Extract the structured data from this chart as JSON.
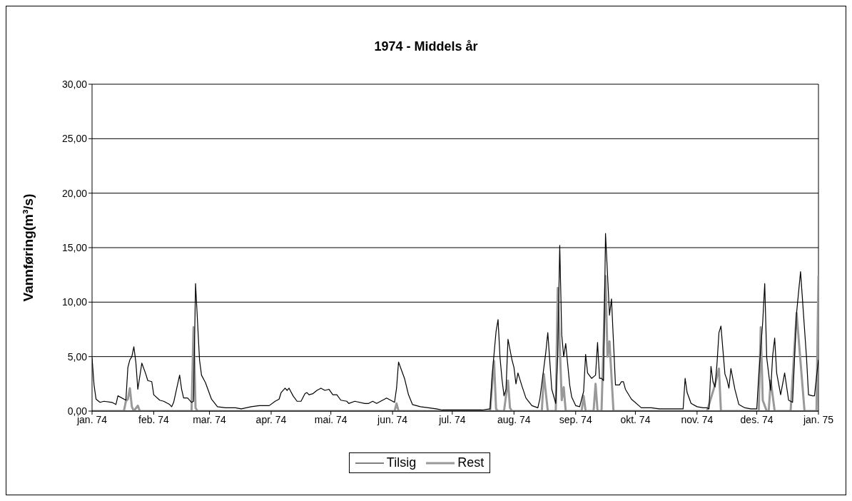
{
  "chart_data": {
    "type": "line",
    "title": "1974 - Middels år",
    "ylabel": "Vannføring(m³/s)",
    "xlim": [
      "1974-01-01",
      "1975-01-01"
    ],
    "xticks": [
      {
        "value": "1974-01-01",
        "label": "jan. 74"
      },
      {
        "value": "1974-02-01",
        "label": "feb. 74"
      },
      {
        "value": "1974-03-01",
        "label": "mar. 74"
      },
      {
        "value": "1974-04-01",
        "label": "apr. 74"
      },
      {
        "value": "1974-05-01",
        "label": "mai. 74"
      },
      {
        "value": "1974-06-01",
        "label": "jun. 74"
      },
      {
        "value": "1974-07-01",
        "label": "jul. 74"
      },
      {
        "value": "1974-08-01",
        "label": "aug. 74"
      },
      {
        "value": "1974-09-01",
        "label": "sep. 74"
      },
      {
        "value": "1974-10-01",
        "label": "okt. 74"
      },
      {
        "value": "1974-11-01",
        "label": "nov. 74"
      },
      {
        "value": "1974-12-01",
        "label": "des. 74"
      },
      {
        "value": "1975-01-01",
        "label": "jan. 75"
      }
    ],
    "ylim": [
      0,
      30
    ],
    "yticks": [
      {
        "value": 0,
        "label": "0,00"
      },
      {
        "value": 5,
        "label": "5,00"
      },
      {
        "value": 10,
        "label": "10,00"
      },
      {
        "value": 15,
        "label": "15,00"
      },
      {
        "value": 20,
        "label": "20,00"
      },
      {
        "value": 25,
        "label": "25,00"
      },
      {
        "value": 30,
        "label": "30,00"
      }
    ],
    "grid": "y",
    "legend": "bottom",
    "marker": "none",
    "line_style": "solid",
    "series": [
      {
        "name": "Tilsig",
        "color": "#000000",
        "x": [
          "1974-01-01",
          "1974-01-02",
          "1974-01-03",
          "1974-01-05",
          "1974-01-07",
          "1974-01-11",
          "1974-01-13",
          "1974-01-14",
          "1974-01-18",
          "1974-01-19",
          "1974-01-20",
          "1974-01-21",
          "1974-01-22",
          "1974-01-23",
          "1974-01-24",
          "1974-01-26",
          "1974-01-28",
          "1974-01-29",
          "1974-01-31",
          "1974-02-01",
          "1974-02-04",
          "1974-02-06",
          "1974-02-09",
          "1974-02-10",
          "1974-02-11",
          "1974-02-14",
          "1974-02-15",
          "1974-02-16",
          "1974-02-18",
          "1974-02-20",
          "1974-02-21",
          "1974-02-22",
          "1974-02-24",
          "1974-02-25",
          "1974-02-27",
          "1974-03-02",
          "1974-03-05",
          "1974-03-09",
          "1974-03-14",
          "1974-03-17",
          "1974-03-22",
          "1974-03-26",
          "1974-03-31",
          "1974-04-03",
          "1974-04-05",
          "1974-04-06",
          "1974-04-08",
          "1974-04-09",
          "1974-04-10",
          "1974-04-12",
          "1974-04-14",
          "1974-04-16",
          "1974-04-18",
          "1974-04-19",
          "1974-04-20",
          "1974-04-22",
          "1974-04-24",
          "1974-04-26",
          "1974-04-28",
          "1974-04-30",
          "1974-05-02",
          "1974-05-04",
          "1974-05-06",
          "1974-05-09",
          "1974-05-10",
          "1974-05-13",
          "1974-05-18",
          "1974-05-20",
          "1974-05-22",
          "1974-05-24",
          "1974-05-27",
          "1974-05-29",
          "1974-06-02",
          "1974-06-03",
          "1974-06-04",
          "1974-06-07",
          "1974-06-09",
          "1974-06-11",
          "1974-06-15",
          "1974-06-19",
          "1974-06-23",
          "1974-06-26",
          "1974-07-01",
          "1974-07-10",
          "1974-07-16",
          "1974-07-20",
          "1974-07-21",
          "1974-07-23",
          "1974-07-24",
          "1974-07-25",
          "1974-07-26",
          "1974-07-27",
          "1974-07-28",
          "1974-07-29",
          "1974-07-31",
          "1974-08-01",
          "1974-08-02",
          "1974-08-03",
          "1974-08-05",
          "1974-08-07",
          "1974-08-10",
          "1974-08-13",
          "1974-08-14",
          "1974-08-17",
          "1974-08-18",
          "1974-08-20",
          "1974-08-22",
          "1974-08-23",
          "1974-08-24",
          "1974-08-25",
          "1974-08-26",
          "1974-08-27",
          "1974-08-29",
          "1974-08-30",
          "1974-09-01",
          "1974-09-03",
          "1974-09-05",
          "1974-09-06",
          "1974-09-07",
          "1974-09-09",
          "1974-09-11",
          "1974-09-12",
          "1974-09-13",
          "1974-09-14",
          "1974-09-15",
          "1974-09-16",
          "1974-09-18",
          "1974-09-19",
          "1974-09-21",
          "1974-09-23",
          "1974-09-24",
          "1974-09-25",
          "1974-09-26",
          "1974-09-29",
          "1974-10-04",
          "1974-10-06",
          "1974-10-09",
          "1974-10-13",
          "1974-10-23",
          "1974-10-25",
          "1974-10-26",
          "1974-10-27",
          "1974-10-29",
          "1974-11-01",
          "1974-11-04",
          "1974-11-06",
          "1974-11-07",
          "1974-11-08",
          "1974-11-09",
          "1974-11-10",
          "1974-11-11",
          "1974-11-12",
          "1974-11-13",
          "1974-11-15",
          "1974-11-16",
          "1974-11-17",
          "1974-11-18",
          "1974-11-20",
          "1974-11-22",
          "1974-11-25",
          "1974-11-28",
          "1974-12-01",
          "1974-12-02",
          "1974-12-04",
          "1974-12-05",
          "1974-12-06",
          "1974-12-08",
          "1974-12-09",
          "1974-12-10",
          "1974-12-11",
          "1974-12-13",
          "1974-12-15",
          "1974-12-17",
          "1974-12-19",
          "1974-12-21",
          "1974-12-23",
          "1974-12-26",
          "1974-12-27",
          "1974-12-29",
          "1974-12-30",
          "1974-12-31",
          "1975-01-01"
        ],
        "values": [
          4.9,
          2.4,
          1.1,
          0.8,
          0.9,
          0.8,
          0.6,
          1.4,
          1.0,
          4.0,
          4.7,
          5.0,
          5.9,
          4.5,
          2.0,
          4.4,
          3.4,
          2.8,
          2.7,
          1.5,
          1.0,
          0.9,
          0.6,
          0.4,
          0.8,
          3.3,
          2.0,
          1.2,
          1.2,
          0.8,
          0.9,
          11.7,
          4.7,
          3.3,
          2.6,
          1.1,
          0.4,
          0.3,
          0.3,
          0.2,
          0.4,
          0.5,
          0.5,
          0.9,
          1.1,
          1.7,
          2.1,
          1.9,
          2.1,
          1.4,
          0.9,
          0.9,
          1.6,
          1.7,
          1.5,
          1.6,
          1.9,
          2.1,
          1.9,
          2.0,
          1.5,
          1.5,
          1.0,
          0.9,
          0.7,
          0.9,
          0.7,
          0.7,
          0.9,
          0.7,
          1.0,
          1.2,
          0.8,
          2.1,
          4.5,
          3.0,
          1.5,
          0.6,
          0.4,
          0.3,
          0.2,
          0.1,
          0.1,
          0.1,
          0.1,
          0.2,
          3.2,
          7.3,
          8.4,
          4.9,
          2.9,
          1.4,
          2.0,
          6.6,
          4.7,
          4.0,
          2.5,
          3.5,
          2.3,
          1.2,
          0.5,
          0.3,
          1.1,
          5.4,
          7.2,
          2.0,
          0.7,
          5.2,
          15.2,
          7.0,
          5.0,
          6.2,
          2.4,
          1.3,
          0.5,
          0.4,
          1.8,
          5.2,
          3.5,
          3.0,
          3.3,
          6.3,
          3.0,
          3.0,
          2.8,
          16.3,
          8.8,
          10.3,
          2.4,
          2.4,
          2.7,
          2.7,
          2.0,
          1.1,
          0.3,
          0.3,
          0.3,
          0.2,
          0.2,
          0.2,
          3.0,
          1.7,
          0.7,
          0.4,
          0.3,
          0.3,
          0.2,
          4.1,
          2.7,
          2.2,
          4.3,
          7.2,
          7.8,
          3.4,
          2.9,
          2.1,
          3.9,
          2.0,
          0.6,
          0.3,
          0.2,
          0.2,
          3.3,
          8.2,
          11.7,
          4.9,
          1.9,
          5.1,
          6.7,
          3.5,
          1.5,
          3.5,
          1.0,
          0.8,
          9.0,
          12.8,
          4.9,
          1.5,
          1.4,
          1.4,
          3.1,
          4.7
        ]
      },
      {
        "name": "Rest",
        "color": "#999999",
        "x": [
          "1974-01-01",
          "1974-01-17",
          "1974-01-18",
          "1974-01-19",
          "1974-01-20",
          "1974-01-21",
          "1974-01-22",
          "1974-01-24",
          "1974-01-25",
          "1974-02-20",
          "1974-02-21",
          "1974-02-22",
          "1974-02-23",
          "1974-06-02",
          "1974-06-03",
          "1974-06-04",
          "1974-07-20",
          "1974-07-22",
          "1974-07-23",
          "1974-07-24",
          "1974-07-27",
          "1974-07-29",
          "1974-07-30",
          "1974-07-31",
          "1974-08-15",
          "1974-08-16",
          "1974-08-18",
          "1974-08-22",
          "1974-08-23",
          "1974-08-25",
          "1974-08-26",
          "1974-08-27",
          "1974-09-04",
          "1974-09-05",
          "1974-09-06",
          "1974-09-10",
          "1974-09-11",
          "1974-09-12",
          "1974-09-14",
          "1974-09-16",
          "1974-09-17",
          "1974-09-18",
          "1974-09-20",
          "1974-11-06",
          "1974-11-10",
          "1974-11-12",
          "1974-11-13",
          "1974-12-02",
          "1974-12-03",
          "1974-12-04",
          "1974-12-06",
          "1974-12-07",
          "1974-12-08",
          "1974-12-10",
          "1974-12-18",
          "1974-12-21",
          "1974-12-25",
          "1974-12-31",
          "1975-01-01"
        ],
        "values": [
          0,
          0,
          0.9,
          1.1,
          2.1,
          0.4,
          0,
          0.5,
          0,
          0,
          7.7,
          0.3,
          0,
          0,
          0.7,
          0,
          0,
          4.6,
          0.2,
          0,
          0,
          2.8,
          0.3,
          0,
          0,
          3.4,
          0,
          0,
          11.3,
          1.0,
          2.2,
          0,
          0,
          1.4,
          0,
          0,
          2.5,
          0,
          0,
          12.4,
          5.0,
          6.4,
          0,
          0,
          2.4,
          3.9,
          0,
          0,
          7.7,
          1.0,
          0,
          0,
          2.8,
          0,
          0,
          9.0,
          0,
          0,
          12.4
        ]
      }
    ]
  }
}
